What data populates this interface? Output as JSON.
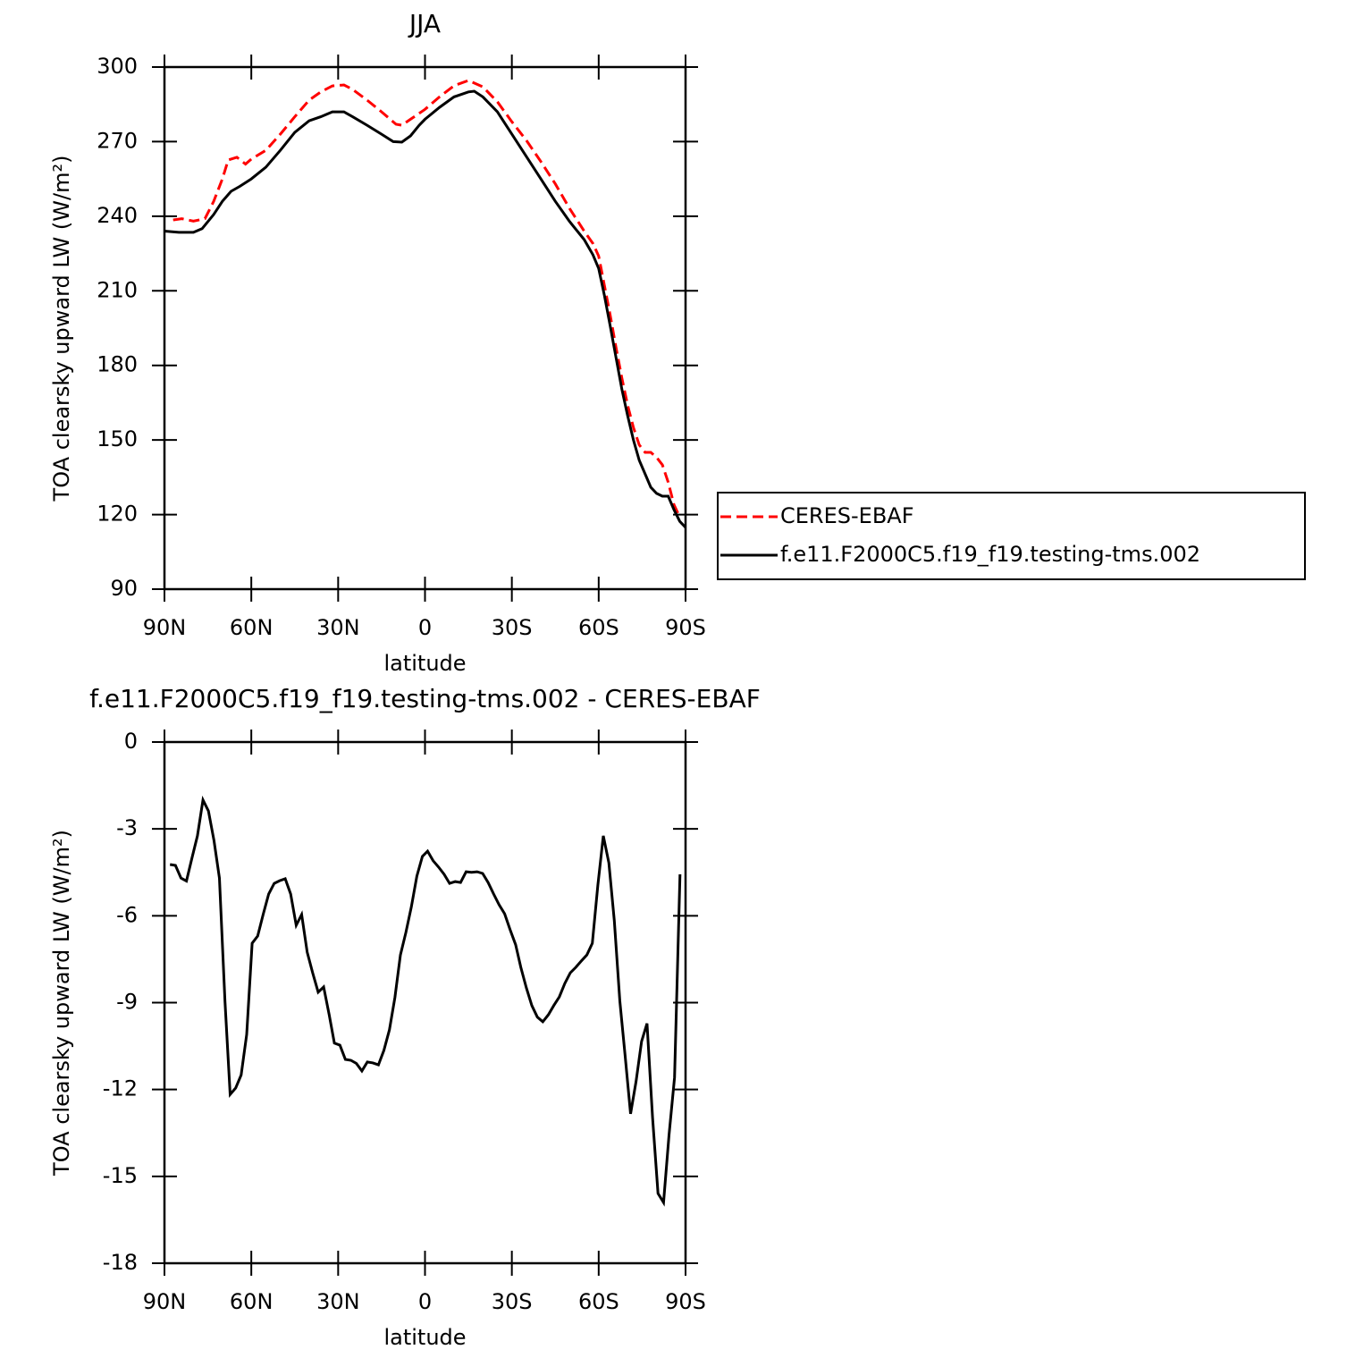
{
  "chart_data": [
    {
      "type": "line",
      "title": "JJA",
      "xlabel": "latitude",
      "ylabel": "TOA clearsky upward LW (W/m²)",
      "xlim": [
        90,
        -90
      ],
      "xticks": [
        {
          "value": 90,
          "label": "90N"
        },
        {
          "value": 60,
          "label": "60N"
        },
        {
          "value": 30,
          "label": "30N"
        },
        0,
        {
          "value": -30,
          "label": "30S"
        },
        {
          "value": -60,
          "label": "60S"
        },
        {
          "value": -90,
          "label": "90S"
        }
      ],
      "ylim": [
        90,
        300
      ],
      "yticks": [
        90,
        120,
        150,
        180,
        210,
        240,
        270,
        300
      ],
      "legend": "right",
      "series": [
        {
          "name": "CERES-EBAF",
          "color": "#ff0000",
          "linestyle": "dashed",
          "x": [
            87,
            84,
            80,
            76,
            73,
            70,
            68,
            65,
            62,
            60,
            55,
            50,
            45,
            40,
            36,
            32,
            28,
            25,
            20,
            15,
            10,
            8,
            5,
            0,
            -5,
            -10,
            -15,
            -20,
            -25,
            -30,
            -35,
            -40,
            -45,
            -50,
            -55,
            -58,
            -60,
            -62,
            -64,
            -66,
            -68,
            -70,
            -72,
            -74,
            -76,
            -78,
            -80,
            -82,
            -84,
            -86,
            -88
          ],
          "values": [
            238.5,
            239,
            238,
            239,
            246,
            255,
            262.6,
            263.7,
            261,
            263,
            266.5,
            273,
            280,
            286.7,
            290,
            292.4,
            292.8,
            291,
            286.7,
            282,
            277,
            276.6,
            279,
            283,
            288,
            292.5,
            294.6,
            292,
            286,
            278,
            270.5,
            262,
            253,
            243,
            234,
            229,
            224,
            212,
            200,
            187,
            175,
            164,
            155,
            148,
            145,
            145,
            143,
            140,
            133,
            124,
            119
          ]
        },
        {
          "name": "f.e11.F2000C5.f19_f19.testing-tms.002",
          "color": "#000000",
          "linestyle": "solid",
          "x": [
            90,
            85,
            80,
            77,
            73,
            70,
            67,
            64,
            60,
            55,
            50,
            45,
            40,
            36,
            32,
            28,
            25,
            20,
            15,
            11,
            8,
            5,
            2,
            0,
            -5,
            -10,
            -15,
            -17,
            -20,
            -25,
            -30,
            -35,
            -40,
            -45,
            -50,
            -55,
            -58,
            -60,
            -62,
            -64,
            -66,
            -68,
            -70,
            -72,
            -74,
            -76,
            -78,
            -80,
            -82,
            -84,
            -86,
            -88,
            -90
          ],
          "values": [
            234,
            233.5,
            233.5,
            235,
            240.7,
            246,
            250,
            252,
            255,
            259.7,
            266.5,
            273.7,
            278.4,
            280,
            282,
            282,
            280,
            276.6,
            273,
            270,
            269.8,
            272.3,
            276.6,
            279,
            283.8,
            288,
            290,
            290.3,
            288,
            282,
            273,
            264,
            255,
            246,
            237.8,
            230.6,
            224.5,
            219,
            208,
            195.7,
            183,
            170.5,
            159.8,
            150,
            141.8,
            136.4,
            131,
            128.5,
            127.4,
            127.4,
            122,
            117.3,
            114.8
          ]
        }
      ]
    },
    {
      "type": "line",
      "title": "f.e11.F2000C5.f19_f19.testing-tms.002 - CERES-EBAF",
      "xlabel": "latitude",
      "ylabel": "TOA clearsky upward LW (W/m²)",
      "xlim": [
        90,
        -90
      ],
      "xticks": [
        {
          "value": 90,
          "label": "90N"
        },
        {
          "value": 60,
          "label": "60N"
        },
        {
          "value": 30,
          "label": "30N"
        },
        0,
        {
          "value": -30,
          "label": "30S"
        },
        {
          "value": -60,
          "label": "60S"
        },
        {
          "value": -90,
          "label": "90S"
        }
      ],
      "ylim": [
        -18,
        0
      ],
      "yticks": [
        -18,
        -15,
        -12,
        -9,
        -6,
        -3,
        0
      ],
      "color": "#000000",
      "x": [
        88.1,
        86.2,
        84.3,
        82.4,
        80.5,
        78.6,
        76.7,
        74.8,
        72.9,
        71.0,
        69.1,
        67.3,
        65.4,
        63.5,
        61.6,
        59.7,
        57.8,
        55.9,
        54.0,
        52.1,
        50.2,
        48.3,
        46.4,
        44.5,
        42.6,
        40.7,
        38.8,
        36.9,
        35.0,
        33.1,
        31.3,
        29.4,
        27.5,
        25.6,
        23.7,
        21.8,
        19.9,
        18.0,
        16.1,
        14.2,
        12.3,
        10.4,
        8.5,
        6.6,
        4.7,
        2.8,
        0.9,
        -0.9,
        -2.8,
        -4.7,
        -6.6,
        -8.5,
        -10.4,
        -12.3,
        -14.2,
        -16.1,
        -18.0,
        -19.9,
        -21.8,
        -23.7,
        -25.6,
        -27.5,
        -29.4,
        -31.3,
        -33.1,
        -35.0,
        -36.9,
        -38.8,
        -40.7,
        -42.6,
        -44.5,
        -46.4,
        -48.3,
        -50.2,
        -52.1,
        -54.0,
        -55.9,
        -57.8,
        -59.7,
        -61.6,
        -63.5,
        -65.4,
        -67.3,
        -69.1,
        -71.0,
        -72.9,
        -74.8,
        -76.7,
        -78.6,
        -80.5,
        -82.4,
        -84.3,
        -86.2,
        -88.1
      ],
      "values": [
        -4.23,
        -4.26,
        -4.7,
        -4.8,
        -4.0,
        -3.24,
        -2.0,
        -2.38,
        -3.4,
        -4.7,
        -8.95,
        -12.17,
        -11.95,
        -11.5,
        -10.1,
        -6.95,
        -6.7,
        -5.96,
        -5.25,
        -4.88,
        -4.79,
        -4.72,
        -5.25,
        -6.33,
        -5.96,
        -7.26,
        -7.97,
        -8.64,
        -8.46,
        -9.42,
        -10.4,
        -10.47,
        -10.96,
        -10.99,
        -11.1,
        -11.36,
        -11.05,
        -11.08,
        -11.15,
        -10.65,
        -9.94,
        -8.83,
        -7.35,
        -6.58,
        -5.68,
        -4.63,
        -3.95,
        -3.77,
        -4.1,
        -4.32,
        -4.57,
        -4.88,
        -4.82,
        -4.85,
        -4.48,
        -4.5,
        -4.48,
        -4.54,
        -4.85,
        -5.25,
        -5.62,
        -5.93,
        -6.48,
        -7.0,
        -7.78,
        -8.49,
        -9.1,
        -9.5,
        -9.66,
        -9.42,
        -9.1,
        -8.8,
        -8.34,
        -7.97,
        -7.78,
        -7.56,
        -7.35,
        -6.95,
        -4.94,
        -3.24,
        -4.17,
        -6.17,
        -8.95,
        -10.8,
        -12.84,
        -11.73,
        -10.34,
        -9.72,
        -12.97,
        -15.59,
        -15.9,
        -13.58,
        -11.58,
        -4.57
      ]
    }
  ]
}
